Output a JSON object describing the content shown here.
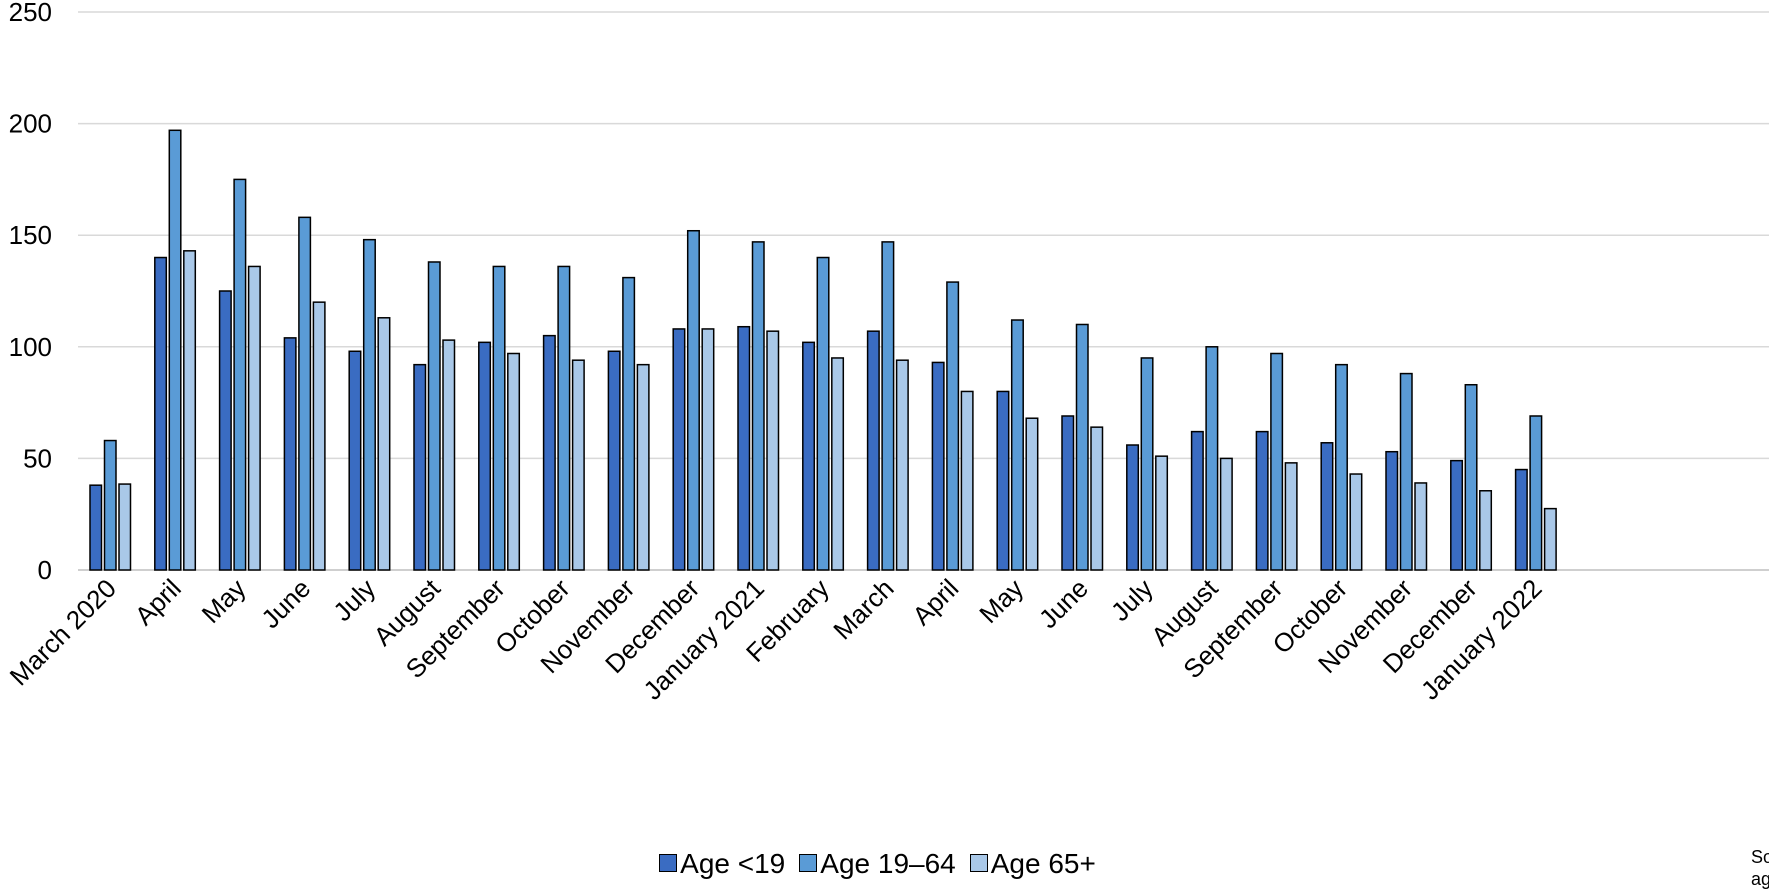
{
  "chart_data": {
    "type": "bar",
    "title": "",
    "xlabel": "",
    "ylabel": "",
    "ylim": [
      0,
      250
    ],
    "yticks": [
      0,
      50,
      100,
      150,
      200,
      250
    ],
    "grid": true,
    "legend_position": "bottom",
    "categories": [
      "March 2020",
      "April",
      "May",
      "June",
      "July",
      "August",
      "September",
      "October",
      "November",
      "December",
      "January 2021",
      "February",
      "March",
      "April",
      "May",
      "June",
      "July",
      "August",
      "September",
      "October",
      "November",
      "December",
      "January 2022"
    ],
    "series": [
      {
        "name": "Age <19",
        "color": "#3a6cc2",
        "values": [
          38,
          140,
          125,
          104,
          98,
          92,
          102,
          105,
          98,
          108,
          109,
          102,
          107,
          93,
          80,
          69,
          56,
          62,
          62,
          57,
          53,
          49,
          45
        ]
      },
      {
        "name": "Age 19–64",
        "color": "#5a9bd6",
        "values": [
          58,
          197,
          175,
          158,
          148,
          138,
          136,
          136,
          131,
          152,
          147,
          140,
          147,
          129,
          112,
          110,
          95,
          100,
          97,
          92,
          88,
          83,
          69
        ]
      },
      {
        "name": "Age 65+",
        "color": "#a9c8e8",
        "values": [
          38.5,
          143,
          136,
          120,
          113,
          103,
          97,
          94,
          92,
          108,
          107,
          95,
          94,
          80,
          68,
          64,
          51,
          50,
          48,
          43,
          39,
          35.5,
          27.5
        ]
      }
    ]
  },
  "side_note": {
    "line1": "So",
    "line2": "ag"
  }
}
